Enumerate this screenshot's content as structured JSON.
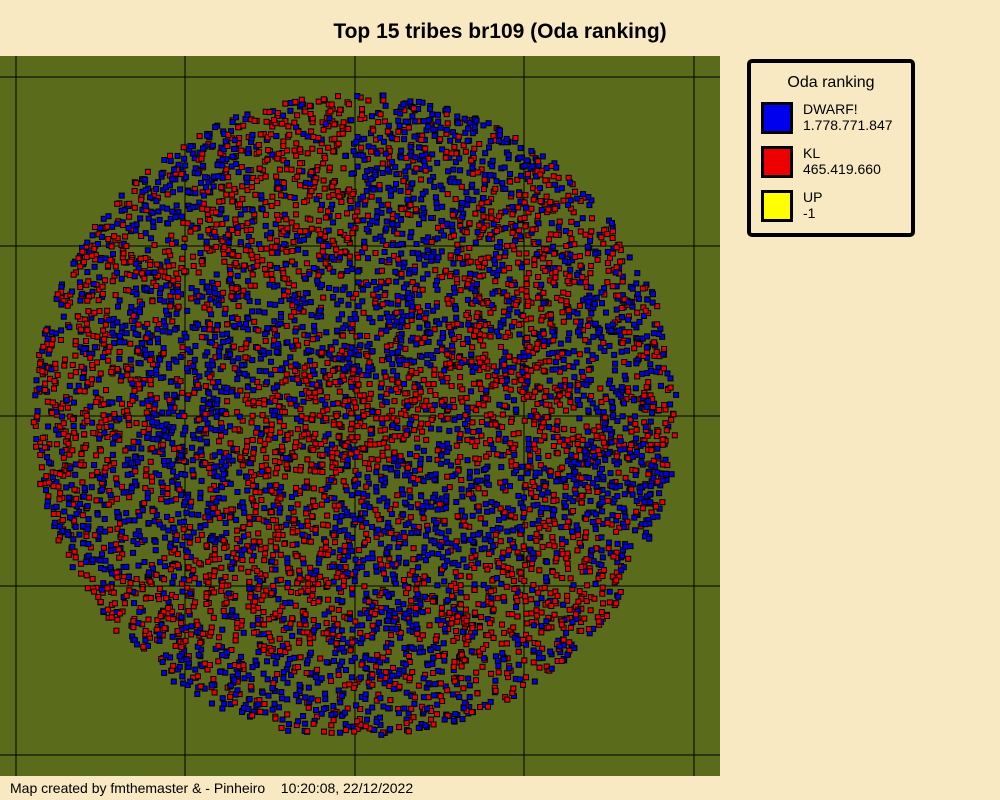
{
  "title": "Top 15 tribes br109 (Oda ranking)",
  "legend": {
    "title": "Oda ranking",
    "entries": [
      {
        "name": "DWARF!",
        "value": "1.778.771.847",
        "color": "#0000ee"
      },
      {
        "name": "KL",
        "value": "465.419.660",
        "color": "#ee0000"
      },
      {
        "name": "UP",
        "value": "-1",
        "color": "#ffff00"
      }
    ]
  },
  "footer": "Map created by fmthemaster & - Pinheiro    10:20:08, 22/12/2022"
}
